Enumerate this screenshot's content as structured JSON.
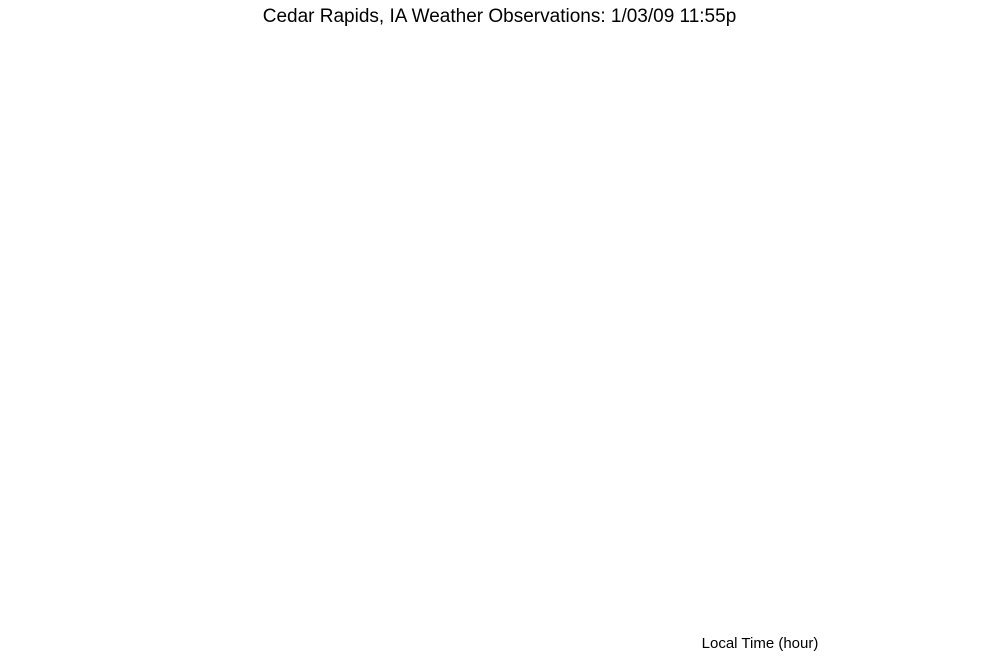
{
  "page_title": "Cedar Rapids, IA Weather Observations: 1/03/09 11:55p",
  "x_axis_label": "Local Time (hour)",
  "colors": {
    "red": "#ff0000",
    "blue": "#0000ff",
    "grid": "#aaaaaa"
  },
  "chart_data": []
}
